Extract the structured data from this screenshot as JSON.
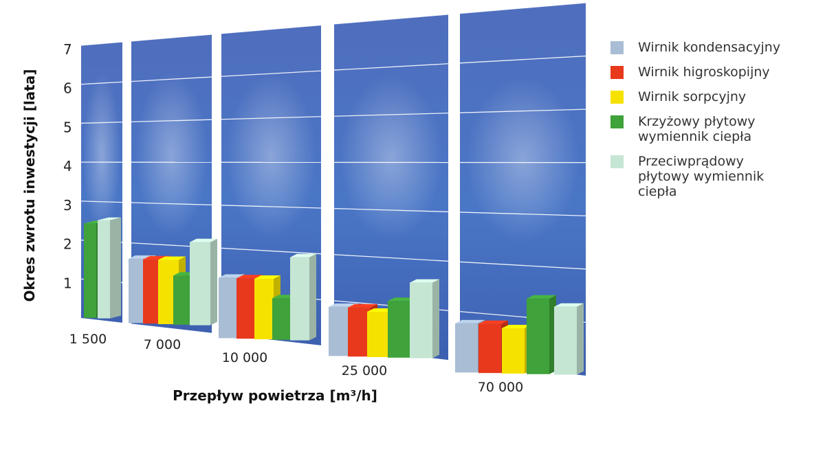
{
  "chart_data": {
    "type": "bar",
    "ylabel": "Okres zwrotu inwestycji [lata]",
    "xlabel": "Przepływ powietrza [m³/h]",
    "ylim": [
      0,
      7
    ],
    "yticks": [
      "1",
      "2",
      "3",
      "4",
      "5",
      "6",
      "7"
    ],
    "categories": [
      "1 500",
      "7 000",
      "10 000",
      "25 000",
      "70 000"
    ],
    "grid": true,
    "legend_position": "right",
    "series": [
      {
        "name": "Wirnik kondensacyjny",
        "color": "#a9bdd4",
        "values": [
          null,
          1.7,
          1.6,
          1.3,
          1.3
        ]
      },
      {
        "name": "Wirnik higroskopijny",
        "color": "#e8391d",
        "values": [
          null,
          1.7,
          1.6,
          1.3,
          1.3
        ]
      },
      {
        "name": "Wirnik sorpcyjny",
        "color": "#f6e200",
        "values": [
          null,
          1.7,
          1.6,
          1.2,
          1.2
        ]
      },
      {
        "name": "Krzyżowy płytowy wymiennik ciepła",
        "color": "#3fa23a",
        "values": [
          2.5,
          1.3,
          1.1,
          1.5,
          2.0
        ]
      },
      {
        "name": "Przeciwprądowy płytowy wymiennik ciepła",
        "color": "#c6e6d4",
        "values": [
          2.6,
          2.2,
          2.2,
          2.0,
          1.8
        ]
      }
    ]
  }
}
